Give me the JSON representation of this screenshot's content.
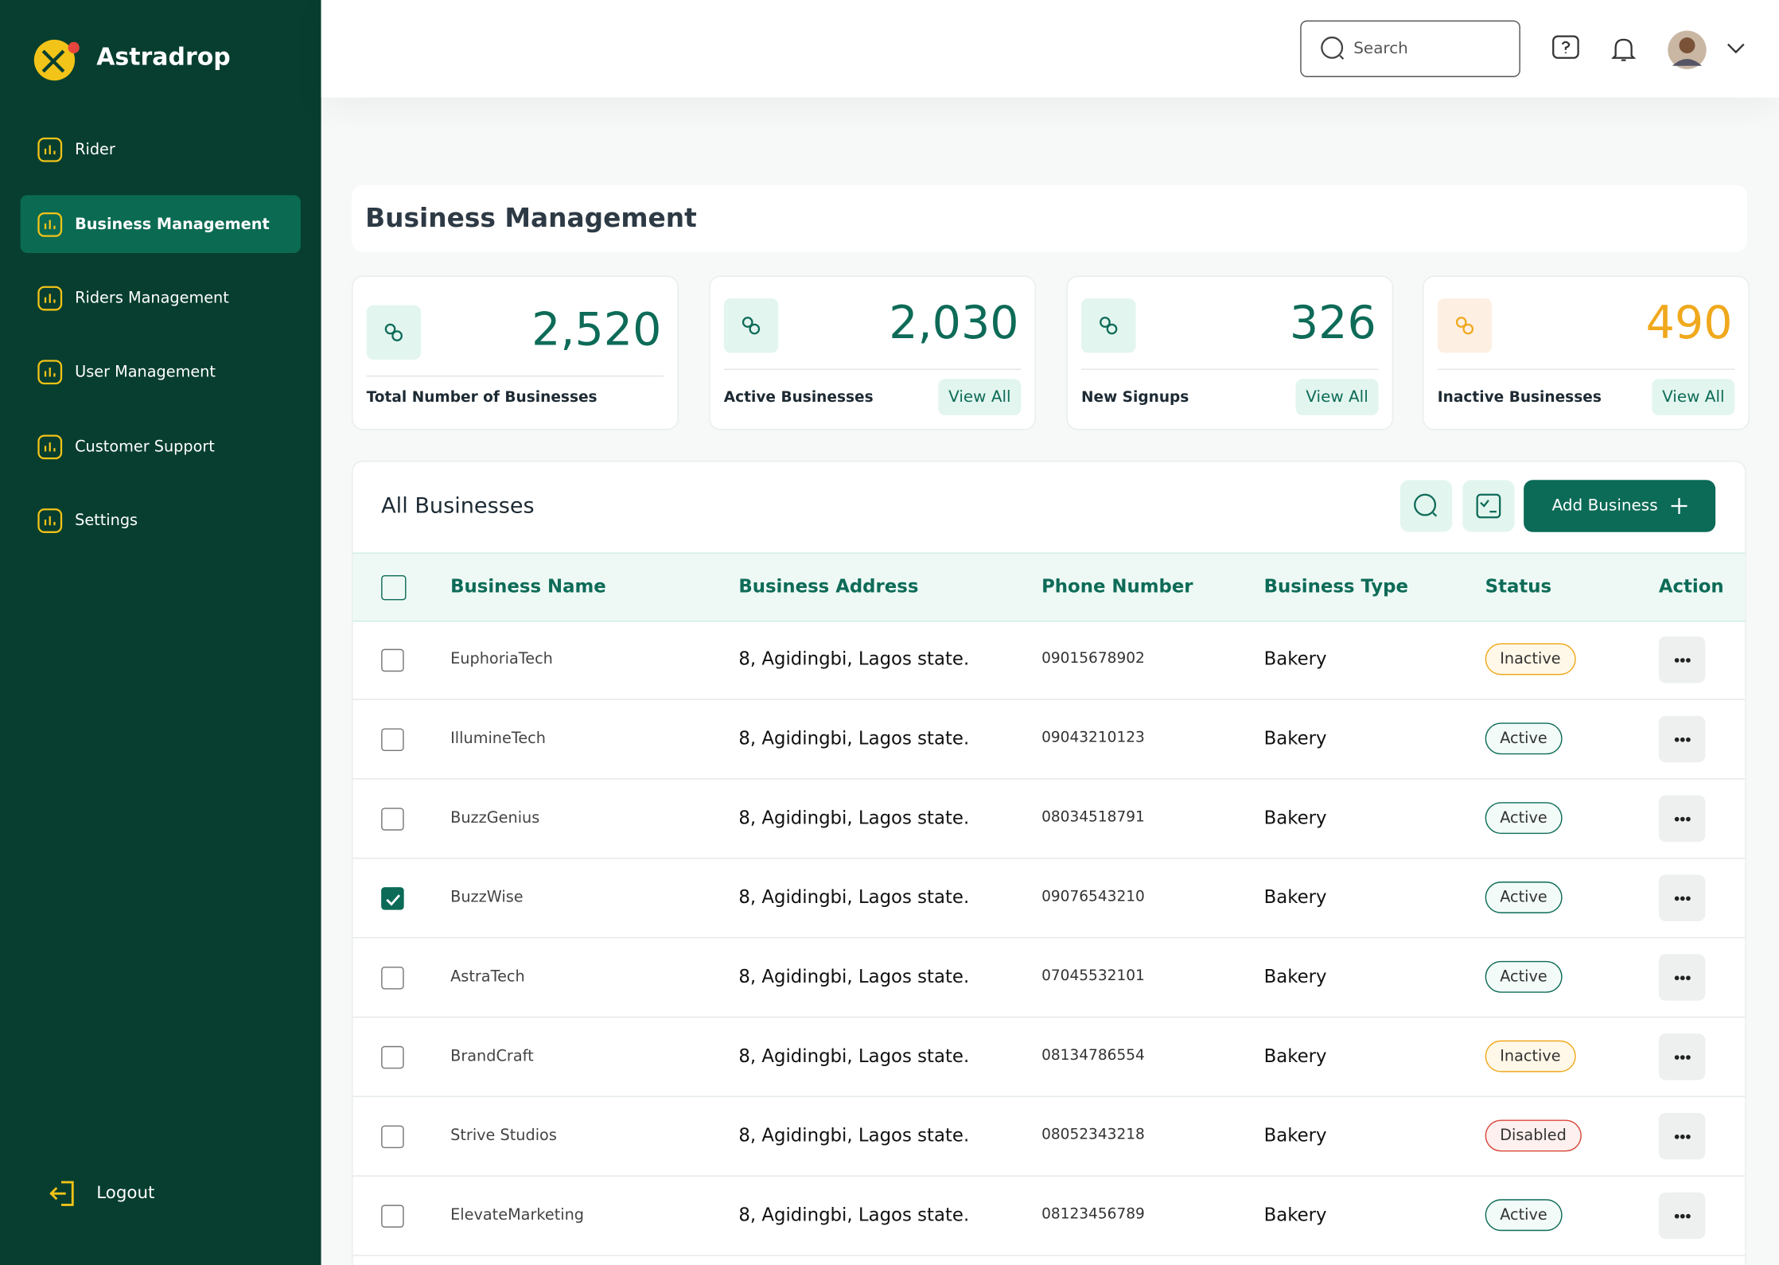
{
  "brand": "Astradrop",
  "nav": [
    {
      "label": "Rider",
      "active": false
    },
    {
      "label": "Business Management",
      "active": true
    },
    {
      "label": "Riders Management",
      "active": false
    },
    {
      "label": "User Management",
      "active": false
    },
    {
      "label": "Customer Support",
      "active": false
    },
    {
      "label": "Settings",
      "active": false
    }
  ],
  "logout": "Logout",
  "search_placeholder": "Search",
  "page_title": "Business Management",
  "stats": [
    {
      "value": "2,520",
      "label": "Total Number of Businesses",
      "color": "#0d6b57",
      "icon_bg": "#e3f5ef"
    },
    {
      "value": "2,030",
      "label": "Active Businesses",
      "link": "View All",
      "color": "#0d6b57",
      "icon_bg": "#e3f5ef"
    },
    {
      "value": "326",
      "label": "New Signups",
      "link": "View All",
      "color": "#0d6b57",
      "icon_bg": "#e3f5ef"
    },
    {
      "value": "490",
      "label": "Inactive Businesses",
      "link": "View All",
      "color": "#f0a81c",
      "icon_bg": "#fdf0e3"
    }
  ],
  "table": {
    "title": "All Businesses",
    "add_button": "Add Business",
    "columns": [
      "Business Name",
      "Business Address",
      "Phone Number",
      "Business Type",
      "Status",
      "Action"
    ],
    "rows": [
      {
        "name": "EuphoriaTech",
        "address": "8, Agidingbi, Lagos state.",
        "phone": "09015678902",
        "type": "Bakery",
        "status": "Inactive",
        "status_color": "#f0a81c",
        "status_bg": "#fff8e8",
        "checked": false
      },
      {
        "name": "IllumineTech",
        "address": "8, Agidingbi, Lagos state.",
        "phone": "09043210123",
        "type": "Bakery",
        "status": "Active",
        "status_color": "#0d6b57",
        "status_bg": "#f2fbf8",
        "checked": false
      },
      {
        "name": "BuzzGenius",
        "address": "8, Agidingbi, Lagos state.",
        "phone": "08034518791",
        "type": "Bakery",
        "status": "Active",
        "status_color": "#0d6b57",
        "status_bg": "#f2fbf8",
        "checked": false
      },
      {
        "name": "BuzzWise",
        "address": "8, Agidingbi, Lagos state.",
        "phone": "09076543210",
        "type": "Bakery",
        "status": "Active",
        "status_color": "#0d6b57",
        "status_bg": "#f2fbf8",
        "checked": true
      },
      {
        "name": "AstraTech",
        "address": "8, Agidingbi, Lagos state.",
        "phone": "07045532101",
        "type": "Bakery",
        "status": "Active",
        "status_color": "#0d6b57",
        "status_bg": "#f2fbf8",
        "checked": false
      },
      {
        "name": "BrandCraft",
        "address": "8, Agidingbi, Lagos state.",
        "phone": "08134786554",
        "type": "Bakery",
        "status": "Inactive",
        "status_color": "#f0a81c",
        "status_bg": "#fff8e8",
        "checked": false
      },
      {
        "name": "Strive Studios",
        "address": "8, Agidingbi, Lagos state.",
        "phone": "08052343218",
        "type": "Bakery",
        "status": "Disabled",
        "status_color": "#d9473a",
        "status_bg": "#fdf0ee",
        "checked": false
      },
      {
        "name": "ElevateMarketing",
        "address": "8, Agidingbi, Lagos state.",
        "phone": "08123456789",
        "type": "Bakery",
        "status": "Active",
        "status_color": "#0d6b57",
        "status_bg": "#f2fbf8",
        "checked": false
      }
    ]
  }
}
